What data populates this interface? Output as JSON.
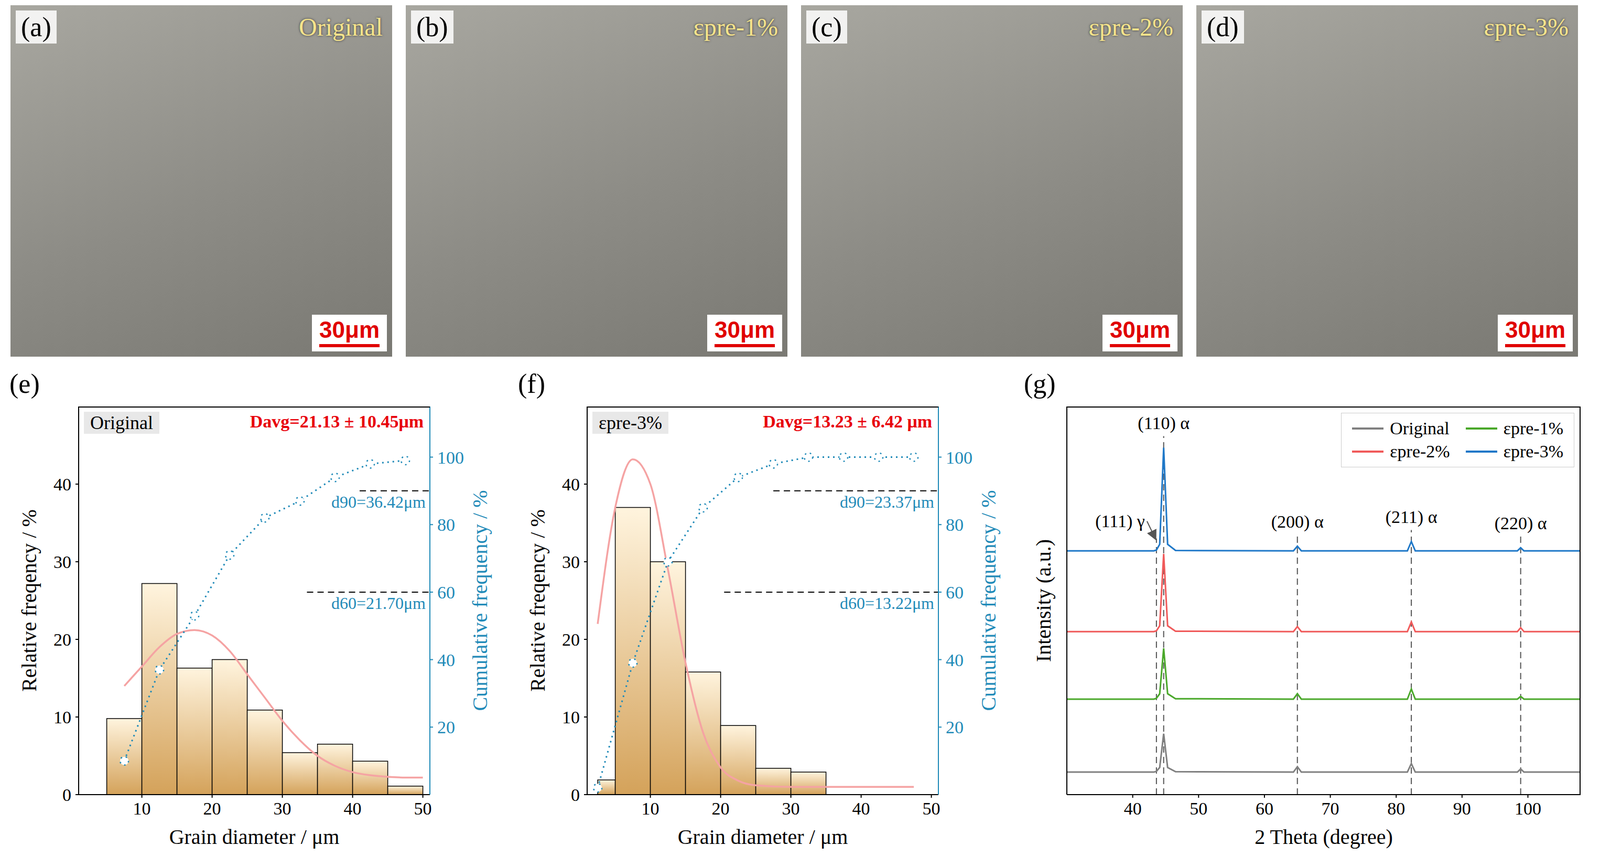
{
  "micrographs": [
    {
      "letter": "(a)",
      "label": "Original",
      "scale_bar": "30μm"
    },
    {
      "letter": "(b)",
      "label": "εpre-1%",
      "scale_bar": "30μm"
    },
    {
      "letter": "(c)",
      "label": "εpre-2%",
      "scale_bar": "30μm"
    },
    {
      "letter": "(d)",
      "label": "εpre-3%",
      "scale_bar": "30μm"
    }
  ],
  "chart_data": [
    {
      "type": "histogram",
      "letter": "(e)",
      "panel_label": "Original",
      "annotation": "Davg=21.13 ± 10.45μm",
      "x_label": "Grain diameter / μm",
      "y_label": "Relative freqency / %",
      "y2_label": "Cumulative frequency / %",
      "bins": [
        5,
        10,
        15,
        20,
        25,
        30,
        35,
        40,
        45,
        50
      ],
      "values": [
        9.8,
        27.2,
        16.3,
        17.4,
        10.9,
        5.4,
        6.5,
        4.3,
        1.1
      ],
      "color": "#d4a25a",
      "xlim": [
        1,
        51
      ],
      "xticks": [
        10,
        20,
        30,
        40,
        50
      ],
      "ylim": [
        0,
        50
      ],
      "yticks": [
        0,
        10,
        20,
        30,
        40
      ],
      "y2lim": [
        0,
        115
      ],
      "y2ticks": [
        20,
        40,
        60,
        80,
        100
      ],
      "fit": {
        "type": "line",
        "x": [
          7.5,
          10,
          12.5,
          15,
          17.5,
          20,
          22.5,
          25,
          27.5,
          30,
          32.5,
          35,
          37.5,
          40,
          42.5,
          45,
          47.5,
          50
        ],
        "values": [
          14,
          16.5,
          19,
          20.7,
          21.2,
          20.5,
          18.5,
          15.5,
          12.5,
          9.5,
          7,
          5,
          3.7,
          2.9,
          2.5,
          2.3,
          2.2,
          2.2
        ],
        "color": "#f5a3a3"
      },
      "cumulative": {
        "type": "line",
        "axis": "y2",
        "x": [
          7.5,
          12.5,
          17.5,
          22.5,
          27.5,
          32.5,
          37.5,
          42.5,
          47.5
        ],
        "values": [
          10,
          37,
          53,
          71,
          82,
          87,
          94,
          98,
          99
        ],
        "color": "#1f8ab8",
        "marker": "o",
        "line_style": "dotted"
      },
      "reference_lines": [
        {
          "label": "d90=36.42μm",
          "axis": "y2",
          "y": 90,
          "x_from": 41,
          "line_style": "dashed"
        },
        {
          "label": "d60=21.70μm",
          "axis": "y2",
          "y": 60,
          "x_from": 33.5,
          "line_style": "dashed"
        }
      ]
    },
    {
      "type": "histogram",
      "letter": "(f)",
      "panel_label": "εpre-3%",
      "annotation": "Davg=13.23 ± 6.42 μm",
      "x_label": "Grain diameter / μm",
      "y_label": "Relative freqency / %",
      "y2_label": "Cumulative frequency / %",
      "bins": [
        2.5,
        5,
        10,
        15,
        20,
        25,
        30,
        35
      ],
      "values": [
        1.9,
        37,
        30,
        15.8,
        8.9,
        3.4,
        2.9
      ],
      "color": "#d4a25a",
      "xlim": [
        1,
        51
      ],
      "xticks": [
        10,
        20,
        30,
        40,
        50
      ],
      "ylim": [
        0,
        50
      ],
      "yticks": [
        0,
        10,
        20,
        30,
        40
      ],
      "y2lim": [
        0,
        115
      ],
      "y2ticks": [
        20,
        40,
        60,
        80,
        100
      ],
      "fit": {
        "type": "line",
        "x": [
          2.5,
          5,
          7.5,
          10,
          12.5,
          15,
          17.5,
          20,
          22.5,
          25,
          30,
          35,
          40,
          47.5
        ],
        "values": [
          22,
          37,
          43.2,
          40,
          29,
          17,
          8,
          3.5,
          1.8,
          1.2,
          1,
          1,
          1,
          1
        ],
        "color": "#f5a3a3"
      },
      "cumulative": {
        "type": "line",
        "axis": "y2",
        "x": [
          2.5,
          7.5,
          12.5,
          17.5,
          22.5,
          27.5,
          32.5,
          37.5,
          42.5,
          47.5
        ],
        "values": [
          2,
          39,
          69,
          85,
          94,
          98,
          100,
          100,
          100,
          100
        ],
        "color": "#1f8ab8",
        "marker": "o",
        "line_style": "dotted"
      },
      "reference_lines": [
        {
          "label": "d90=23.37μm",
          "axis": "y2",
          "y": 90,
          "x_from": 27.5,
          "line_style": "dashed"
        },
        {
          "label": "d60=13.22μm",
          "axis": "y2",
          "y": 60,
          "x_from": 20.5,
          "line_style": "dashed"
        }
      ]
    },
    {
      "type": "line",
      "letter": "(g)",
      "x_label": "2 Theta (degree)",
      "y_label": "Intensity (a.u.)",
      "x": [
        30,
        43.2,
        43.6,
        44.1,
        44.7,
        45.3,
        46.5,
        64.4,
        65,
        65.6,
        81.7,
        82.3,
        82.9,
        98.4,
        98.9,
        99.4,
        108
      ],
      "series": [
        {
          "name": "Original",
          "color": "#808080",
          "values": [
            0.58,
            0.58,
            0.6,
            0.7,
            1.57,
            0.7,
            0.59,
            0.58,
            0.72,
            0.58,
            0.58,
            0.8,
            0.58,
            0.58,
            0.66,
            0.58,
            0.58
          ]
        },
        {
          "name": "εpre-1%",
          "color": "#4aa82a",
          "values": [
            2.46,
            2.46,
            2.48,
            2.6,
            3.77,
            2.6,
            2.47,
            2.46,
            2.6,
            2.46,
            2.46,
            2.72,
            2.46,
            2.46,
            2.53,
            2.46,
            2.46
          ]
        },
        {
          "name": "εpre-2%",
          "color": "#f05a5a",
          "values": [
            4.2,
            4.2,
            4.22,
            4.35,
            6.2,
            4.35,
            4.21,
            4.2,
            4.33,
            4.2,
            4.2,
            4.45,
            4.2,
            4.2,
            4.3,
            4.2,
            4.2
          ]
        },
        {
          "name": "εpre-3%",
          "color": "#1f78c8",
          "values": [
            6.28,
            6.28,
            6.3,
            6.45,
            8.94,
            6.45,
            6.29,
            6.28,
            6.4,
            6.28,
            6.28,
            6.52,
            6.28,
            6.28,
            6.36,
            6.28,
            6.28
          ]
        }
      ],
      "xlim": [
        30,
        108
      ],
      "xticks": [
        40,
        50,
        60,
        70,
        80,
        90,
        100
      ],
      "ylim": [
        0,
        10
      ],
      "tick_labels": "x",
      "legend": "upper right",
      "peaks": [
        {
          "label": "(111) γ",
          "x": 43.6,
          "line_style": "dashed"
        },
        {
          "label": "(110) α",
          "x": 44.7,
          "line_style": "dashed"
        },
        {
          "label": "(200) α",
          "x": 65,
          "line_style": "dashed"
        },
        {
          "label": "(211) α",
          "x": 82.3,
          "line_style": "dashed"
        },
        {
          "label": "(220) α",
          "x": 98.9,
          "line_style": "dashed"
        }
      ]
    }
  ]
}
